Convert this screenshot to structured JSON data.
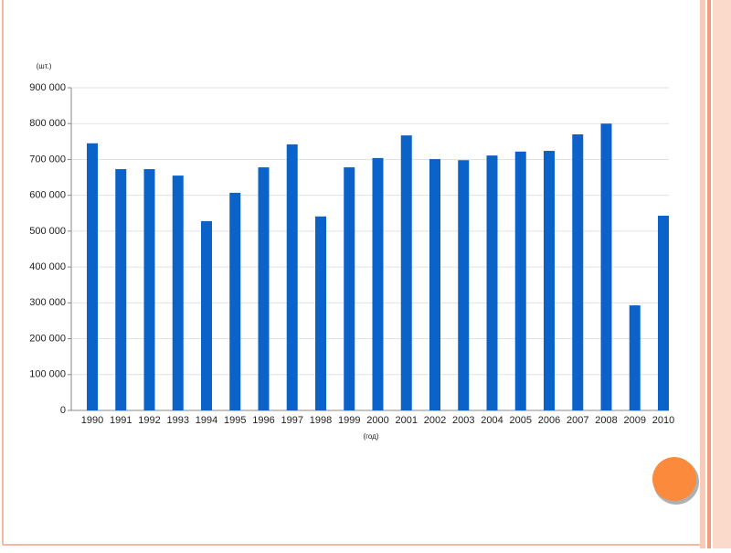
{
  "chart_data": {
    "type": "bar",
    "y_unit_label": "(шт.)",
    "x_label": "(год)",
    "categories": [
      "1990",
      "1991",
      "1992",
      "1993",
      "1994",
      "1995",
      "1996",
      "1997",
      "1998",
      "1999",
      "2000",
      "2001",
      "2002",
      "2003",
      "2004",
      "2005",
      "2006",
      "2007",
      "2008",
      "2009",
      "2010"
    ],
    "values": [
      745000,
      673000,
      673000,
      655000,
      528000,
      607000,
      678000,
      742000,
      541000,
      678000,
      704000,
      767000,
      701000,
      698000,
      711000,
      722000,
      724000,
      770000,
      800000,
      293000,
      543000
    ],
    "color": "#0b63c9",
    "ylim": [
      0,
      900000
    ],
    "yticks": [
      0,
      {
        "value": 100000,
        "label": "100 000"
      },
      {
        "value": 200000,
        "label": "200 000"
      },
      {
        "value": 300000,
        "label": "300 000"
      },
      {
        "value": 400000,
        "label": "400 000"
      },
      {
        "value": 500000,
        "label": "500 000"
      },
      {
        "value": 600000,
        "label": "600 000"
      },
      {
        "value": 700000,
        "label": "700 000"
      },
      {
        "value": 800000,
        "label": "800 000"
      },
      {
        "value": 900000,
        "label": "900 000"
      }
    ],
    "grid": true
  }
}
